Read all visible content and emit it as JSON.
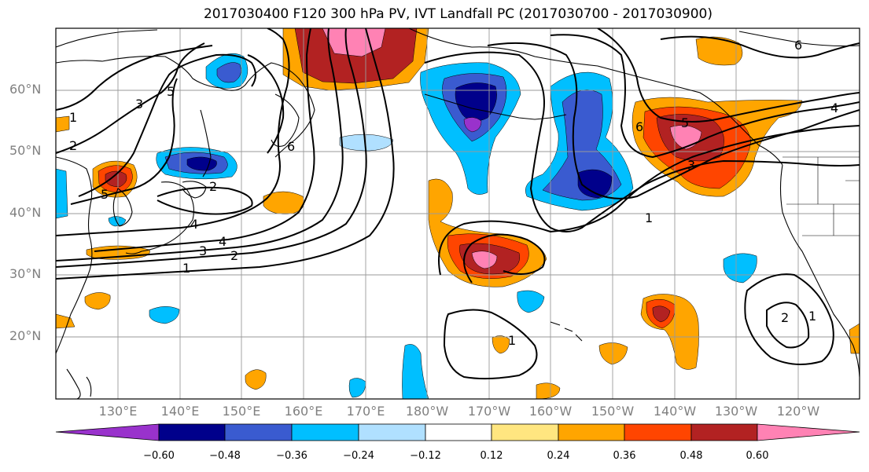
{
  "title": "2017030400 F120 300 hPa PV, IVT Landfall PC (2017030700 - 2017030900)",
  "lat_labels": [
    "60°N",
    "50°N",
    "40°N",
    "30°N",
    "20°N"
  ],
  "lon_labels": [
    "130°E",
    "140°E",
    "150°E",
    "160°E",
    "170°E",
    "180°W",
    "170°W",
    "160°W",
    "150°W",
    "140°W",
    "130°W",
    "120°W"
  ],
  "colorbar": {
    "colors": [
      "#9932cc",
      "#00008b",
      "#3a5bd0",
      "#00bfff",
      "#b0e0ff",
      "#ffffff",
      "#ffe680",
      "#ffa500",
      "#ff4500",
      "#b22222",
      "#ff82b4"
    ],
    "ticks": [
      "−0.60",
      "−0.48",
      "−0.36",
      "−0.24",
      "−0.12",
      "0.12",
      "0.24",
      "0.36",
      "0.48",
      "0.60"
    ]
  },
  "contour_labels": [
    {
      "id": "c1-west",
      "text": "1"
    },
    {
      "id": "c2-west",
      "text": "2"
    },
    {
      "id": "c3-west",
      "text": "3"
    },
    {
      "id": "c4-west",
      "text": "4"
    },
    {
      "id": "c4-west-b",
      "text": "4"
    },
    {
      "id": "c1-nw",
      "text": "1"
    },
    {
      "id": "c2-nw",
      "text": "2"
    },
    {
      "id": "c3-nw",
      "text": "3"
    },
    {
      "id": "c5-nw",
      "text": "5"
    },
    {
      "id": "c5-japan",
      "text": "5"
    },
    {
      "id": "c2-japan",
      "text": "2"
    },
    {
      "id": "c6-kam",
      "text": "6"
    },
    {
      "id": "c1-sub",
      "text": "1"
    },
    {
      "id": "c1-ne",
      "text": "1"
    },
    {
      "id": "c3-ne",
      "text": "3"
    },
    {
      "id": "c4-ne",
      "text": "4"
    },
    {
      "id": "c6-ne",
      "text": "6"
    },
    {
      "id": "c5-ne",
      "text": "5"
    },
    {
      "id": "c2-east",
      "text": "2"
    },
    {
      "id": "c1-east",
      "text": "1"
    },
    {
      "id": "c6-top",
      "text": "6"
    }
  ]
}
